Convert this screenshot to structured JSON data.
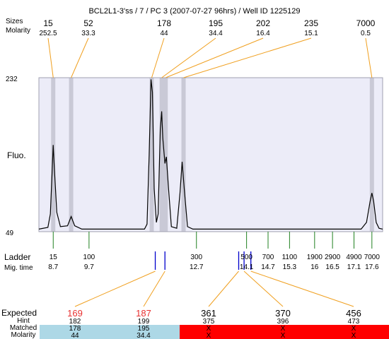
{
  "title": "BCL2L1-3'ss / 7 / PC 3 (2007-07-27 96hrs) / Well ID 1225129",
  "labels": {
    "sizes": "Sizes",
    "molarity": "Molarity",
    "fluo": "Fluo.",
    "ladder": "Ladder",
    "mig_time": "Mig. time",
    "expected": "Expected",
    "hint": "Hint",
    "matched": "Matched",
    "molarity_bottom": "Molarity"
  },
  "colors": {
    "plot_bg": "#ececf8",
    "peak_band": "#c9c9d6",
    "connector": "#f0a020",
    "ladder_tick": "#208020",
    "marker_tick": "#0000cc",
    "expected_red": "#e83030",
    "matched_bg": "#add8e6",
    "unmatched_bg": "#ff0000"
  },
  "chart_data": {
    "type": "line",
    "title": "BCL2L1-3'ss / 7 / PC 3 (2007-07-27 96hrs) / Well ID 1225129",
    "ylabel": "Fluo.",
    "xlabel": "Mig. time",
    "ylim": [
      49,
      232
    ],
    "y_ticks": [
      232,
      49
    ],
    "xlim": [
      8.3,
      17.9
    ],
    "peaks_top": [
      {
        "size": "15",
        "molarity": "252.5",
        "time": 8.7
      },
      {
        "size": "52",
        "molarity": "33.3",
        "time": 9.2
      },
      {
        "size": "178",
        "molarity": "44",
        "time": 11.45
      },
      {
        "size": "195",
        "molarity": "34.4",
        "time": 11.73
      },
      {
        "size": "202",
        "molarity": "16.4",
        "time": 11.84
      },
      {
        "size": "235",
        "molarity": "15.1",
        "time": 12.34
      },
      {
        "size": "7000",
        "molarity": "0.5",
        "time": 17.6
      }
    ],
    "trace": [
      [
        8.3,
        52
      ],
      [
        8.55,
        54
      ],
      [
        8.62,
        70
      ],
      [
        8.67,
        120
      ],
      [
        8.7,
        152
      ],
      [
        8.73,
        125
      ],
      [
        8.8,
        72
      ],
      [
        8.9,
        55
      ],
      [
        9.1,
        56
      ],
      [
        9.2,
        67
      ],
      [
        9.3,
        56
      ],
      [
        9.5,
        52
      ],
      [
        11.25,
        52
      ],
      [
        11.32,
        58
      ],
      [
        11.38,
        140
      ],
      [
        11.43,
        230
      ],
      [
        11.47,
        215
      ],
      [
        11.52,
        100
      ],
      [
        11.58,
        60
      ],
      [
        11.63,
        70
      ],
      [
        11.69,
        170
      ],
      [
        11.73,
        192
      ],
      [
        11.76,
        160
      ],
      [
        11.82,
        130
      ],
      [
        11.86,
        138
      ],
      [
        11.92,
        100
      ],
      [
        12.0,
        55
      ],
      [
        12.15,
        53
      ],
      [
        12.24,
        95
      ],
      [
        12.3,
        132
      ],
      [
        12.36,
        100
      ],
      [
        12.45,
        55
      ],
      [
        12.6,
        52
      ],
      [
        17.3,
        52
      ],
      [
        17.45,
        60
      ],
      [
        17.55,
        85
      ],
      [
        17.6,
        95
      ],
      [
        17.65,
        85
      ],
      [
        17.72,
        60
      ],
      [
        17.8,
        53
      ],
      [
        17.9,
        52
      ]
    ],
    "ladder": [
      {
        "size": "15",
        "time": "8.7",
        "t": 8.7
      },
      {
        "size": "100",
        "time": "9.7",
        "t": 9.7
      },
      {
        "size": "300",
        "time": "12.7",
        "t": 12.7
      },
      {
        "size": "500",
        "time": "14.1",
        "t": 14.1
      },
      {
        "size": "700",
        "time": "14.7",
        "t": 14.7
      },
      {
        "size": "1100",
        "time": "15.3",
        "t": 15.3
      },
      {
        "size": "1900",
        "time": "16",
        "t": 16.0
      },
      {
        "size": "2900",
        "time": "16.5",
        "t": 16.5
      },
      {
        "size": "4900",
        "time": "17.1",
        "t": 17.1
      },
      {
        "size": "7000",
        "time": "17.6",
        "t": 17.6
      }
    ],
    "expected_markers": [
      11.55,
      11.82,
      13.88,
      14.03,
      14.22
    ],
    "expected": [
      {
        "expected": "169",
        "hint": "182",
        "matched": "178",
        "molarity": "44",
        "is_matched": true,
        "marker_index": 0
      },
      {
        "expected": "187",
        "hint": "199",
        "matched": "195",
        "molarity": "34.4",
        "is_matched": true,
        "marker_index": 1
      },
      {
        "expected": "361",
        "hint": "375",
        "matched": "X",
        "molarity": "X",
        "is_matched": false,
        "marker_index": 2
      },
      {
        "expected": "370",
        "hint": "396",
        "matched": "X",
        "molarity": "X",
        "is_matched": false,
        "marker_index": 3
      },
      {
        "expected": "456",
        "hint": "473",
        "matched": "X",
        "molarity": "X",
        "is_matched": false,
        "marker_index": 4
      }
    ]
  }
}
